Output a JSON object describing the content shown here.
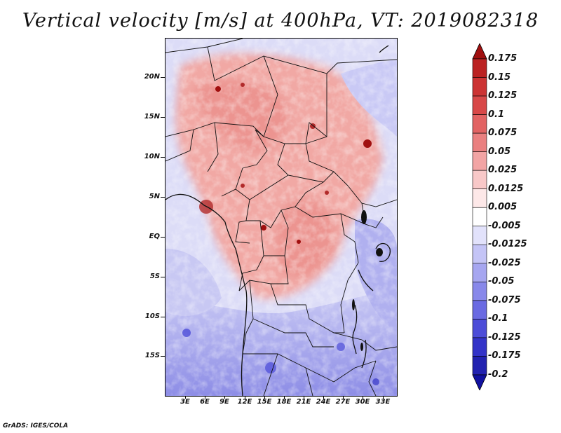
{
  "title": "Vertical velocity [m/s] at 400hPa, VT: 2019082318",
  "footer": "GrADS: IGES/COLA",
  "map": {
    "lat_labels": [
      "20N",
      "15N",
      "10N",
      "5N",
      "EQ",
      "5S",
      "10S",
      "15S"
    ],
    "lon_labels": [
      "3E",
      "6E",
      "9E",
      "12E",
      "15E",
      "18E",
      "21E",
      "24E",
      "27E",
      "30E",
      "33E"
    ],
    "lon_range": [
      0,
      35
    ],
    "lat_range": [
      -20,
      25
    ]
  },
  "colorbar": {
    "labels": [
      "0.175",
      "0.15",
      "0.125",
      "0.1",
      "0.075",
      "0.05",
      "0.025",
      "0.0125",
      "0.005",
      "-0.005",
      "-0.0125",
      "-0.025",
      "-0.05",
      "-0.075",
      "-0.1",
      "-0.125",
      "-0.175",
      "-0.2"
    ],
    "colors": [
      "#a00f0f",
      "#bb2222",
      "#cc3333",
      "#d84848",
      "#e26363",
      "#ea8080",
      "#f2a4a4",
      "#f8c8c8",
      "#fde8e8",
      "#ffffff",
      "#e2e2fb",
      "#c4c4f6",
      "#a6a6f0",
      "#8888ea",
      "#6a6ae2",
      "#4c4cd8",
      "#3333c8",
      "#2222b0",
      "#1111a0"
    ]
  }
}
